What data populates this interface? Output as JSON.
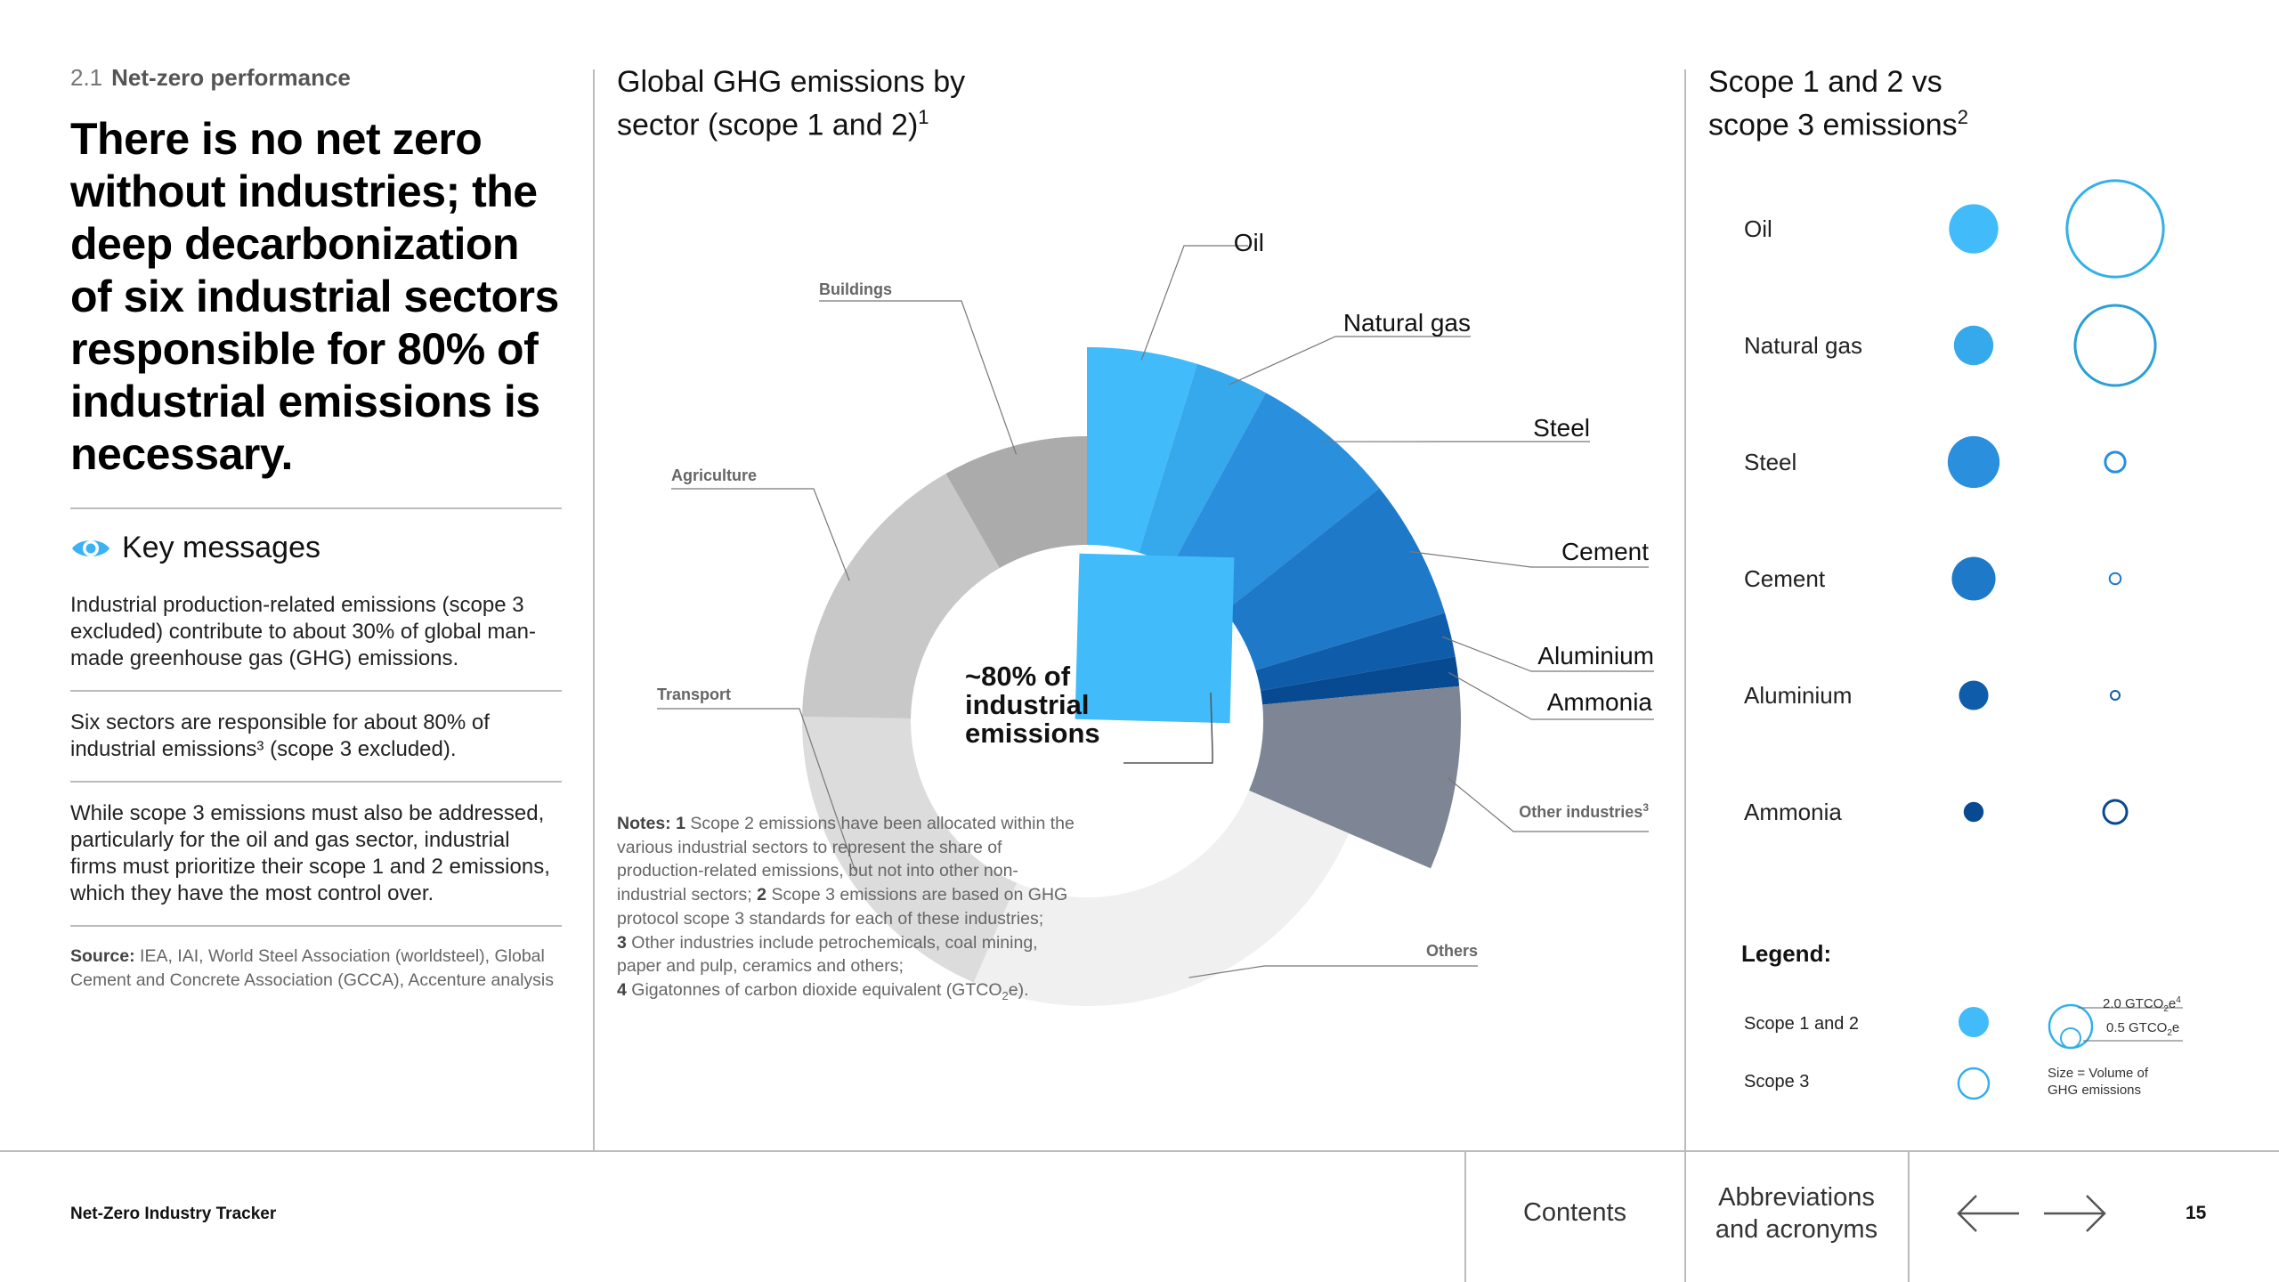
{
  "section": {
    "number": "2.1",
    "title": "Net-zero performance"
  },
  "headline": "There is no net zero without industries; the deep decarbonization of six industrial sectors responsible for 80% of industrial emissions is necessary.",
  "key_messages": {
    "title": "Key messages",
    "icon": "eye-icon",
    "items": [
      "Industrial production-related emissions (scope 3 excluded) contribute to about 30% of global man-made greenhouse gas (GHG) emissions.",
      "Six sectors are responsible for about 80% of industrial emissions³ (scope 3 excluded).",
      "While scope 3 emissions must also be addressed, particularly for the oil and gas sector, industrial firms must prioritize their scope 1 and 2 emissions, which they have the most control over."
    ]
  },
  "source": {
    "label": "Source:",
    "text": "IEA, IAI, World Steel Association (worldsteel), Global Cement and Concrete Association (GCCA), Accenture analysis"
  },
  "notes": {
    "label": "Notes:",
    "n1_num": "1",
    "n1_text": "Scope 2 emissions have been allocated within the various industrial sectors to represent the share of production-related emissions, but not into other non-industrial sectors;",
    "n2_num": "2",
    "n2_text": "Scope 3 emissions are based on GHG protocol scope 3 standards for each of these industries;",
    "n3_num": "3",
    "n3_text": "Other industries include petrochemicals, coal mining, paper and pulp, ceramics and others;",
    "n4_num": "4",
    "n4_text": "Gigatonnes of carbon dioxide equivalent (GTCO",
    "n4_sub": "2",
    "n4_end": "e)."
  },
  "chart_data": [
    {
      "type": "pie",
      "title_line1": "Global GHG emissions by",
      "title_line2": "sector (scope 1 and 2)",
      "title_sup": "1",
      "center_label": [
        "~80% of",
        "industrial",
        "emissions"
      ],
      "slices": [
        {
          "name": "Oil",
          "label": "Oil",
          "share": 0.0417,
          "color": "#41BBFA",
          "industrial": true
        },
        {
          "name": "Natural gas",
          "label": "Natural gas",
          "share": 0.0278,
          "color": "#36A8EC",
          "industrial": true
        },
        {
          "name": "Steel",
          "label": "Steel",
          "share": 0.0556,
          "color": "#2A8FDC",
          "industrial": true
        },
        {
          "name": "Cement",
          "label": "Cement",
          "share": 0.0528,
          "color": "#1E7AC8",
          "industrial": true
        },
        {
          "name": "Aluminium",
          "label": "Aluminium",
          "share": 0.0167,
          "color": "#0F5CAA",
          "industrial": true
        },
        {
          "name": "Ammonia",
          "label": "Ammonia",
          "share": 0.0111,
          "color": "#074A92",
          "industrial": true
        },
        {
          "name": "Other industries",
          "label": "Other industries",
          "label_sup": "3",
          "share": 0.0694,
          "color": "#7E8594",
          "industrial": true
        },
        {
          "name": "Others",
          "label": "Others",
          "share": 0.2194,
          "color": "#F0F0F0",
          "industrial": false
        },
        {
          "name": "Transport",
          "label": "Transport",
          "share": 0.1639,
          "color": "#DCDCDC",
          "industrial": false
        },
        {
          "name": "Agriculture",
          "label": "Agriculture",
          "share": 0.1444,
          "color": "#C8C8C8",
          "industrial": false
        },
        {
          "name": "Buildings",
          "label": "Buildings",
          "share": 0.0722,
          "color": "#ABABAB",
          "industrial": false
        }
      ]
    },
    {
      "type": "bubble",
      "title_line1": "Scope 1 and 2 vs",
      "title_line2": "scope 3 emissions",
      "title_sup": "2",
      "series": [
        {
          "name": "Scope 1 and 2",
          "style": "filled"
        },
        {
          "name": "Scope 3",
          "style": "outline"
        }
      ],
      "rows": [
        {
          "label": "Oil",
          "scope12": 1.4,
          "scope3": 5.2,
          "color_fill": "#41BBFA",
          "color_outline": "#34B0E6"
        },
        {
          "label": "Natural gas",
          "scope12": 0.9,
          "scope3": 3.6,
          "color_fill": "#36A8EC",
          "color_outline": "#2A9FD6"
        },
        {
          "label": "Steel",
          "scope12": 1.55,
          "scope3": 0.22,
          "color_fill": "#2A8FDC",
          "color_outline": "#2A8FDC"
        },
        {
          "label": "Cement",
          "scope12": 1.1,
          "scope3": 0.07,
          "color_fill": "#1E7AC8",
          "color_outline": "#1E7AC8"
        },
        {
          "label": "Aluminium",
          "scope12": 0.5,
          "scope3": 0.01,
          "color_fill": "#0F5CAA",
          "color_outline": "#0F5CAA"
        },
        {
          "label": "Ammonia",
          "scope12": 0.23,
          "scope3": 0.3,
          "color_fill": "#074A92",
          "color_outline": "#074A92"
        }
      ],
      "legend": {
        "title": "Legend:",
        "scope12_label": "Scope 1 and 2",
        "scope3_label": "Scope 3",
        "size_big_label": "2.0 GTCO",
        "size_big_sub": "2",
        "size_big_end": "e",
        "size_big_sup": "4",
        "size_small_label": "0.5 GTCO",
        "size_small_sub": "2",
        "size_small_end": "e",
        "size_note": [
          "Size = Volume of",
          "GHG emissions"
        ]
      }
    }
  ],
  "footer": {
    "brand": "Net-Zero Industry Tracker",
    "contents": "Contents",
    "abbrev": [
      "Abbreviations",
      "and acronyms"
    ],
    "prev_icon": "arrow-left-icon",
    "next_icon": "arrow-right-icon",
    "page": "15"
  }
}
